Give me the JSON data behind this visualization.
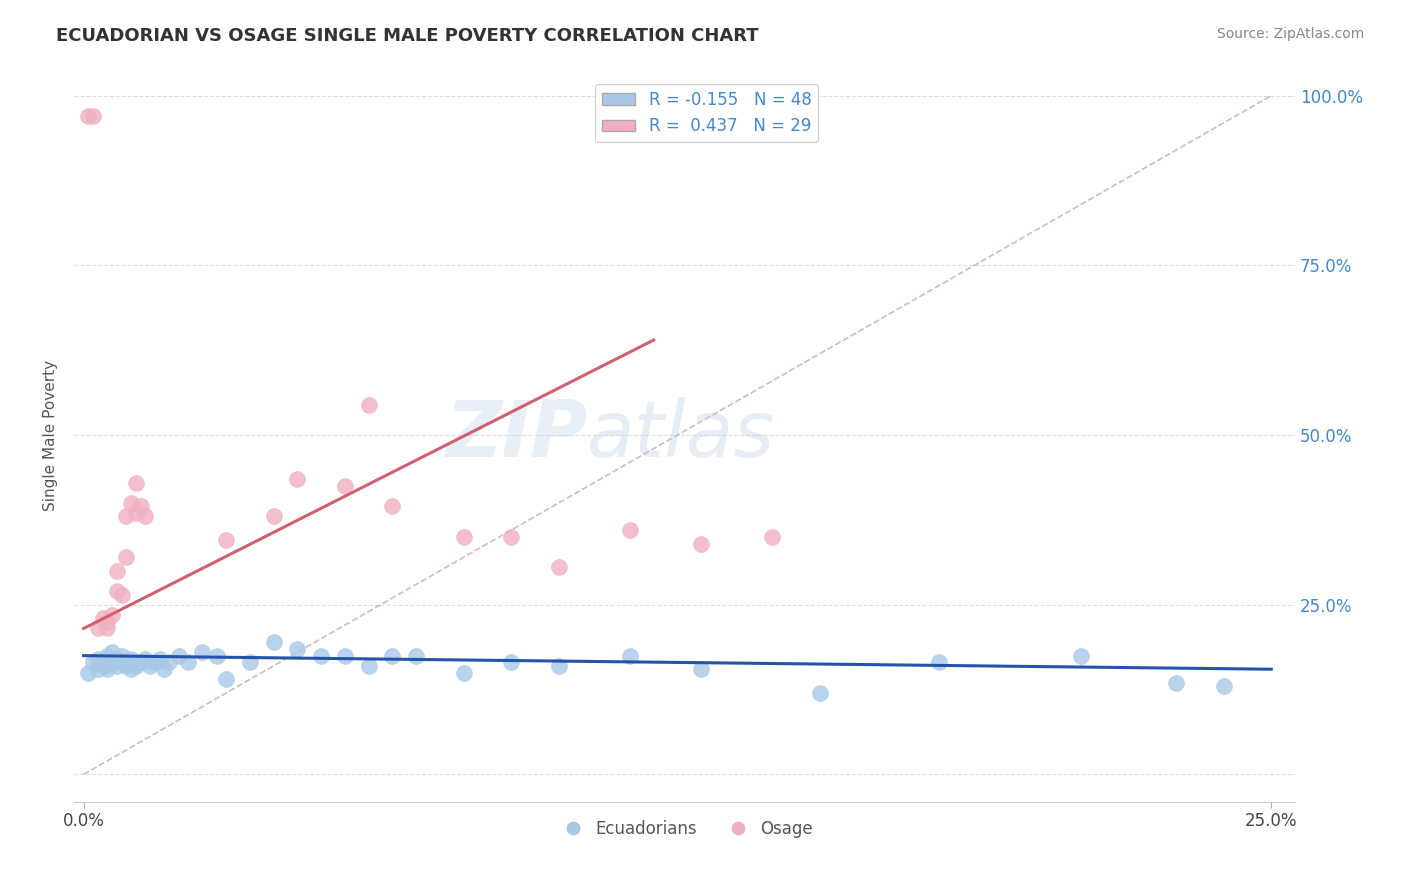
{
  "title": "ECUADORIAN VS OSAGE SINGLE MALE POVERTY CORRELATION CHART",
  "source": "Source: ZipAtlas.com",
  "ylabel": "Single Male Poverty",
  "xlim": [
    0.0,
    0.25
  ],
  "ylim": [
    0.0,
    1.0
  ],
  "blue_R": -0.155,
  "blue_N": 48,
  "pink_R": 0.437,
  "pink_N": 29,
  "blue_color": "#A8C8E8",
  "pink_color": "#F0B0C0",
  "blue_line_color": "#2255AA",
  "pink_line_color": "#D06070",
  "diag_line_color": "#D0B0B8",
  "background_color": "#FFFFFF",
  "grid_color": "#DDDDDD",
  "title_color": "#333333",
  "source_color": "#888888",
  "tick_color": "#4488CC",
  "ylabel_color": "#555555",
  "blue_points_x": [
    0.001,
    0.002,
    0.003,
    0.003,
    0.004,
    0.005,
    0.005,
    0.006,
    0.006,
    0.007,
    0.007,
    0.008,
    0.008,
    0.009,
    0.009,
    0.01,
    0.01,
    0.011,
    0.012,
    0.013,
    0.014,
    0.015,
    0.016,
    0.017,
    0.018,
    0.02,
    0.022,
    0.025,
    0.028,
    0.03,
    0.035,
    0.04,
    0.045,
    0.05,
    0.055,
    0.06,
    0.065,
    0.07,
    0.08,
    0.09,
    0.1,
    0.115,
    0.13,
    0.155,
    0.18,
    0.21,
    0.23,
    0.24
  ],
  "blue_points_y": [
    0.15,
    0.165,
    0.155,
    0.17,
    0.16,
    0.155,
    0.175,
    0.165,
    0.18,
    0.16,
    0.17,
    0.165,
    0.175,
    0.16,
    0.165,
    0.155,
    0.17,
    0.16,
    0.165,
    0.17,
    0.16,
    0.165,
    0.17,
    0.155,
    0.165,
    0.175,
    0.165,
    0.18,
    0.175,
    0.14,
    0.165,
    0.195,
    0.185,
    0.175,
    0.175,
    0.16,
    0.175,
    0.175,
    0.15,
    0.165,
    0.16,
    0.175,
    0.155,
    0.12,
    0.165,
    0.175,
    0.135,
    0.13
  ],
  "pink_points_x": [
    0.001,
    0.002,
    0.003,
    0.004,
    0.005,
    0.005,
    0.006,
    0.007,
    0.007,
    0.008,
    0.009,
    0.009,
    0.01,
    0.011,
    0.011,
    0.012,
    0.013,
    0.03,
    0.04,
    0.045,
    0.055,
    0.06,
    0.065,
    0.08,
    0.09,
    0.1,
    0.115,
    0.13,
    0.145
  ],
  "pink_points_y": [
    0.97,
    0.97,
    0.215,
    0.23,
    0.215,
    0.225,
    0.235,
    0.27,
    0.3,
    0.265,
    0.32,
    0.38,
    0.4,
    0.385,
    0.43,
    0.395,
    0.38,
    0.345,
    0.38,
    0.435,
    0.425,
    0.545,
    0.395,
    0.35,
    0.35,
    0.305,
    0.36,
    0.34,
    0.35
  ],
  "blue_line_x": [
    0.0,
    0.25
  ],
  "blue_line_y": [
    0.175,
    0.155
  ],
  "pink_line_x": [
    0.0,
    0.12
  ],
  "pink_line_y": [
    0.215,
    0.64
  ],
  "diag_line_x": [
    0.0,
    0.25
  ],
  "diag_line_y": [
    0.0,
    1.0
  ],
  "legend_label_blue": "R = -0.155   N = 48",
  "legend_label_pink": "R =  0.437   N = 29",
  "bottom_legend_blue": "Ecuadorians",
  "bottom_legend_pink": "Osage"
}
